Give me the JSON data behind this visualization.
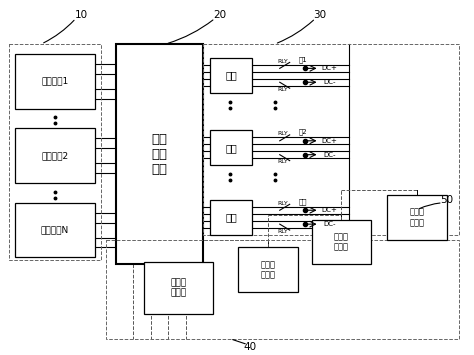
{
  "bg_color": "#ffffff",
  "line_color": "#000000",
  "box_color": "#ffffff",
  "box_edge": "#000000",
  "label_10": "10",
  "label_20": "20",
  "label_30": "30",
  "label_40": "40",
  "label_50": "50",
  "power_modules": [
    "电源模块1",
    "电源模块2",
    "电源模块N"
  ],
  "main_module": "功率\n分配\n模块",
  "meters": [
    "电表",
    "电表",
    "电表"
  ],
  "central_control": "中央控\n制模块",
  "terminal_controls": [
    "终端控\n制模块",
    "终端控\n制模块",
    "终端控\n制模块"
  ],
  "rly": "RLY",
  "dc_pos": "DC+",
  "dc_neg": "DC-",
  "gun_labels": [
    "枪1",
    "枪2",
    "枪多"
  ]
}
